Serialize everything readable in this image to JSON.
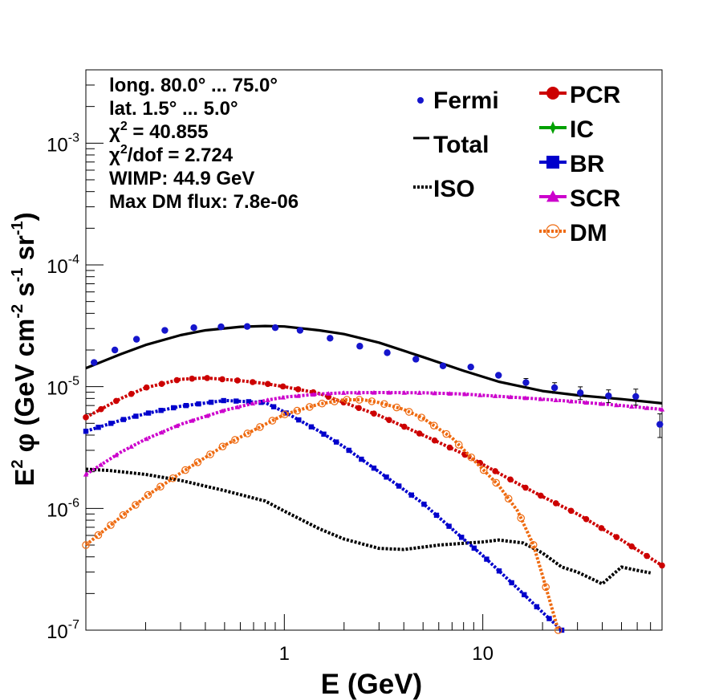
{
  "chart_data": {
    "type": "line",
    "xlabel": "E (GeV)",
    "ylabel_parts": {
      "prefix": "E",
      "prefix_sup": "2",
      "phi": "φ",
      "unit": "(GeV cm",
      "sup1": "-2",
      "s": " s",
      "sup2": "-1",
      "sr": " sr",
      "sup3": "-1",
      "close": ")"
    },
    "x_scale": "log",
    "y_scale": "log",
    "xlim": [
      0.1,
      80
    ],
    "ylim": [
      1e-07,
      0.004
    ],
    "x_tick_labels": [
      {
        "value": 1,
        "label": "1"
      },
      {
        "value": 10,
        "label": "10"
      }
    ],
    "y_tick_labels": [
      {
        "value": 1e-07,
        "base": "10",
        "exp": "-7"
      },
      {
        "value": 1e-06,
        "base": "10",
        "exp": "-6"
      },
      {
        "value": 1e-05,
        "base": "10",
        "exp": "-5"
      },
      {
        "value": 0.0001,
        "base": "10",
        "exp": "-4"
      },
      {
        "value": 0.001,
        "base": "10",
        "exp": "-3"
      }
    ],
    "info": [
      {
        "text": "long. 80.0° ... 75.0°"
      },
      {
        "text": "lat. 1.5° ... 5.0°"
      },
      {
        "chi": "χ",
        "sup": "2",
        "rest": " = 40.855"
      },
      {
        "chi": "χ",
        "sup": "2",
        "rest": "/dof = 2.724"
      },
      {
        "text": "WIMP: 44.9 GeV"
      },
      {
        "text": "Max DM flux: 7.8e-06"
      }
    ],
    "legend_left": [
      {
        "name": "Fermi",
        "style": "point",
        "color": "#1515cc"
      },
      {
        "name": "Total",
        "style": "line",
        "color": "#000000"
      },
      {
        "name": "ISO",
        "style": "dotted",
        "color": "#000000"
      }
    ],
    "legend_right": [
      {
        "name": "PCR",
        "style": "circle",
        "color": "#cc0000"
      },
      {
        "name": "IC",
        "style": "star",
        "color": "#00a000"
      },
      {
        "name": "BR",
        "style": "square",
        "color": "#0000cc"
      },
      {
        "name": "SCR",
        "style": "triangle",
        "color": "#cc00cc"
      },
      {
        "name": "DM",
        "style": "opencircle",
        "color": "#ee6a10"
      }
    ],
    "series": [
      {
        "name": "Total",
        "color": "#000000",
        "style": "solid",
        "x": [
          0.1,
          0.15,
          0.2,
          0.3,
          0.4,
          0.6,
          0.8,
          1.0,
          1.5,
          2.0,
          3.0,
          5.0,
          8.0,
          12.0,
          20.0,
          30.0,
          50.0,
          80.0
        ],
        "y": [
          1.42e-05,
          1.85e-05,
          2.2e-05,
          2.65e-05,
          2.9e-05,
          3.1e-05,
          3.15e-05,
          3.12e-05,
          2.9e-05,
          2.7e-05,
          2.3e-05,
          1.75e-05,
          1.35e-05,
          1.1e-05,
          9.2e-06,
          8.5e-06,
          7.9e-06,
          7.3e-06
        ]
      },
      {
        "name": "ISO",
        "color": "#000000",
        "style": "dotted",
        "x": [
          0.1,
          0.13,
          0.2,
          0.3,
          0.5,
          0.8,
          1.0,
          1.5,
          2.0,
          3.0,
          4.0,
          6.0,
          10.0,
          12.0,
          16.0,
          20.0,
          25.0,
          30.0,
          40.0,
          50.0,
          60.0,
          70.0
        ],
        "y": [
          2.1e-06,
          2.05e-06,
          1.9e-06,
          1.7e-06,
          1.4e-06,
          1.15e-06,
          9.5e-07,
          6.8e-07,
          5.6e-07,
          4.7e-07,
          4.6e-07,
          5e-07,
          5.3e-07,
          5.5e-07,
          5.2e-07,
          4.3e-07,
          3.3e-07,
          3e-07,
          2.4e-07,
          3.3e-07,
          3.1e-07,
          2.95e-07
        ]
      },
      {
        "name": "PCR",
        "color": "#cc0000",
        "style": "dotted",
        "x": [
          0.1,
          0.15,
          0.2,
          0.3,
          0.4,
          0.6,
          0.8,
          1.0,
          1.5,
          2.0,
          3.0,
          5.0,
          8.0,
          10.0,
          15.0,
          20.0,
          30.0,
          50.0,
          80.0
        ],
        "y": [
          5.6e-06,
          8e-06,
          9.8e-06,
          1.15e-05,
          1.18e-05,
          1.12e-05,
          1.06e-05,
          1e-05,
          8.8e-06,
          7.4e-06,
          5.8e-06,
          4e-06,
          2.8e-06,
          2.3e-06,
          1.6e-06,
          1.25e-06,
          9e-07,
          5.5e-07,
          3.4e-07
        ]
      },
      {
        "name": "BR",
        "color": "#0000cc",
        "style": "dotted",
        "x": [
          0.1,
          0.15,
          0.2,
          0.3,
          0.5,
          0.8,
          1.0,
          1.5,
          2.0,
          3.0,
          5.0,
          8.0,
          10.0,
          15.0,
          20.0,
          25.0
        ],
        "y": [
          4.3e-06,
          5.3e-06,
          6e-06,
          6.9e-06,
          7.7e-06,
          7.4e-06,
          6.2e-06,
          4.3e-06,
          3.2e-06,
          2e-06,
          1.1e-06,
          5.6e-07,
          4.1e-07,
          2.2e-07,
          1.4e-07,
          1e-07
        ]
      },
      {
        "name": "SCR",
        "color": "#cc00cc",
        "style": "dotted",
        "x": [
          0.1,
          0.15,
          0.2,
          0.3,
          0.5,
          0.8,
          1.0,
          1.5,
          2.0,
          3.0,
          5.0,
          8.0,
          10.0,
          20.0,
          30.0,
          50.0,
          80.0
        ],
        "y": [
          1.9e-06,
          2.9e-06,
          3.7e-06,
          4.9e-06,
          6.4e-06,
          7.7e-06,
          8.2e-06,
          8.7e-06,
          8.9e-06,
          8.95e-06,
          8.9e-06,
          8.7e-06,
          8.5e-06,
          7.9e-06,
          7.5e-06,
          7e-06,
          6.5e-06
        ]
      },
      {
        "name": "DM",
        "color": "#ee6a10",
        "style": "dotted",
        "x": [
          0.1,
          0.15,
          0.2,
          0.3,
          0.5,
          0.8,
          1.0,
          1.5,
          2.0,
          2.5,
          3.0,
          4.0,
          5.0,
          7.0,
          10.0,
          12.0,
          15.0,
          18.0,
          20.0,
          24.0
        ],
        "y": [
          5e-07,
          8.5e-07,
          1.25e-06,
          1.95e-06,
          3.3e-06,
          4.9e-06,
          5.9e-06,
          7.2e-06,
          7.8e-06,
          7.8e-06,
          7.4e-06,
          6.5e-06,
          5.5e-06,
          3.8e-06,
          2.1e-06,
          1.55e-06,
          9.5e-07,
          5e-07,
          2.8e-07,
          1e-07
        ]
      },
      {
        "name": "Fermi",
        "color": "#1515cc",
        "style": "points",
        "x": [
          0.11,
          0.14,
          0.18,
          0.25,
          0.35,
          0.48,
          0.65,
          0.9,
          1.2,
          1.7,
          2.4,
          3.3,
          4.6,
          6.3,
          8.7,
          12.0,
          16.5,
          23.0,
          31.0,
          43.0,
          59.0,
          78.0
        ],
        "y": [
          1.58e-05,
          2e-05,
          2.45e-05,
          2.9e-05,
          3.05e-05,
          3.1e-05,
          3.12e-05,
          3.05e-05,
          2.9e-05,
          2.5e-05,
          2.15e-05,
          1.9e-05,
          1.68e-05,
          1.48e-05,
          1.45e-05,
          1.24e-05,
          1.08e-05,
          9.8e-06,
          8.9e-06,
          8.4e-06,
          8.3e-06,
          4.9e-06
        ],
        "yerr": [
          0,
          0,
          0,
          0,
          0,
          0,
          0,
          0,
          0,
          0,
          0,
          0,
          0,
          0,
          0,
          0,
          0.08,
          0.1,
          0.12,
          0.12,
          0.15,
          0.22
        ]
      }
    ]
  }
}
